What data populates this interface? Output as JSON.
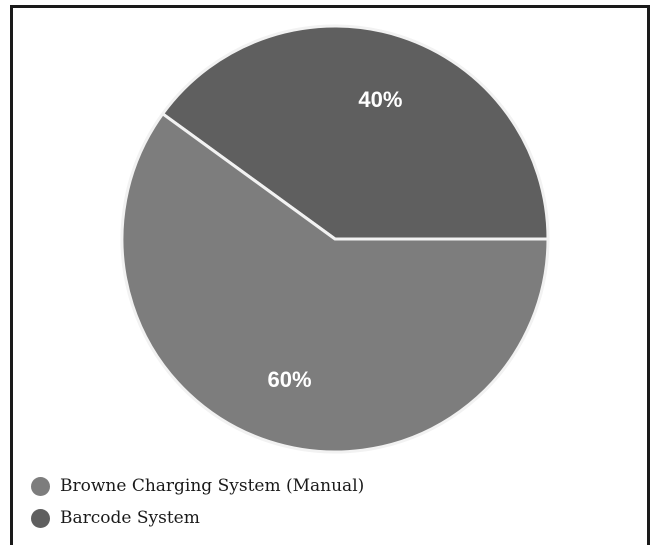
{
  "chart_data": {
    "type": "pie",
    "series": [
      {
        "label": "Browne Charging System (Manual)",
        "value": 60,
        "value_label": "60%",
        "color": "#7d7d7d"
      },
      {
        "label": "Barcode System",
        "value": 40,
        "value_label": "40%",
        "color": "#5f5f5f"
      }
    ],
    "slice_border_color": "#f2f2f2",
    "start_direction": "right",
    "legend_position": "bottom-left"
  }
}
